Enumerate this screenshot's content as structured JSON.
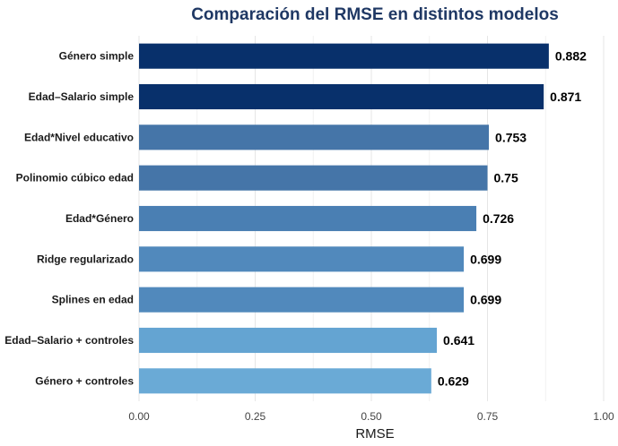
{
  "chart_data": {
    "type": "bar",
    "orientation": "horizontal",
    "title": "Comparación del RMSE en distintos modelos",
    "xlabel": "RMSE",
    "ylabel": "",
    "xlim": [
      0,
      1
    ],
    "x_ticks": [
      "0.00",
      "0.25",
      "0.50",
      "0.75",
      "1.00"
    ],
    "categories": [
      "Género simple",
      "Edad–Salario simple",
      "Edad*Nivel educativo",
      "Polinomio cúbico edad",
      "Edad*Género",
      "Ridge regularizado",
      "Splines en edad",
      "Edad–Salario + controles",
      "Género + controles"
    ],
    "values": [
      0.882,
      0.871,
      0.753,
      0.75,
      0.726,
      0.699,
      0.699,
      0.641,
      0.629
    ],
    "value_labels": [
      "0.882",
      "0.871",
      "0.753",
      "0.75",
      "0.726",
      "0.699",
      "0.699",
      "0.641",
      "0.629"
    ],
    "bar_colors": [
      "#08306b",
      "#08306b",
      "#4575a8",
      "#4575a8",
      "#4a7fb3",
      "#5189bc",
      "#5189bc",
      "#64a4d2",
      "#6aaad6"
    ],
    "grid": true,
    "legend": "none"
  },
  "colors": {
    "title": "#1f3864",
    "background": "#ffffff"
  }
}
